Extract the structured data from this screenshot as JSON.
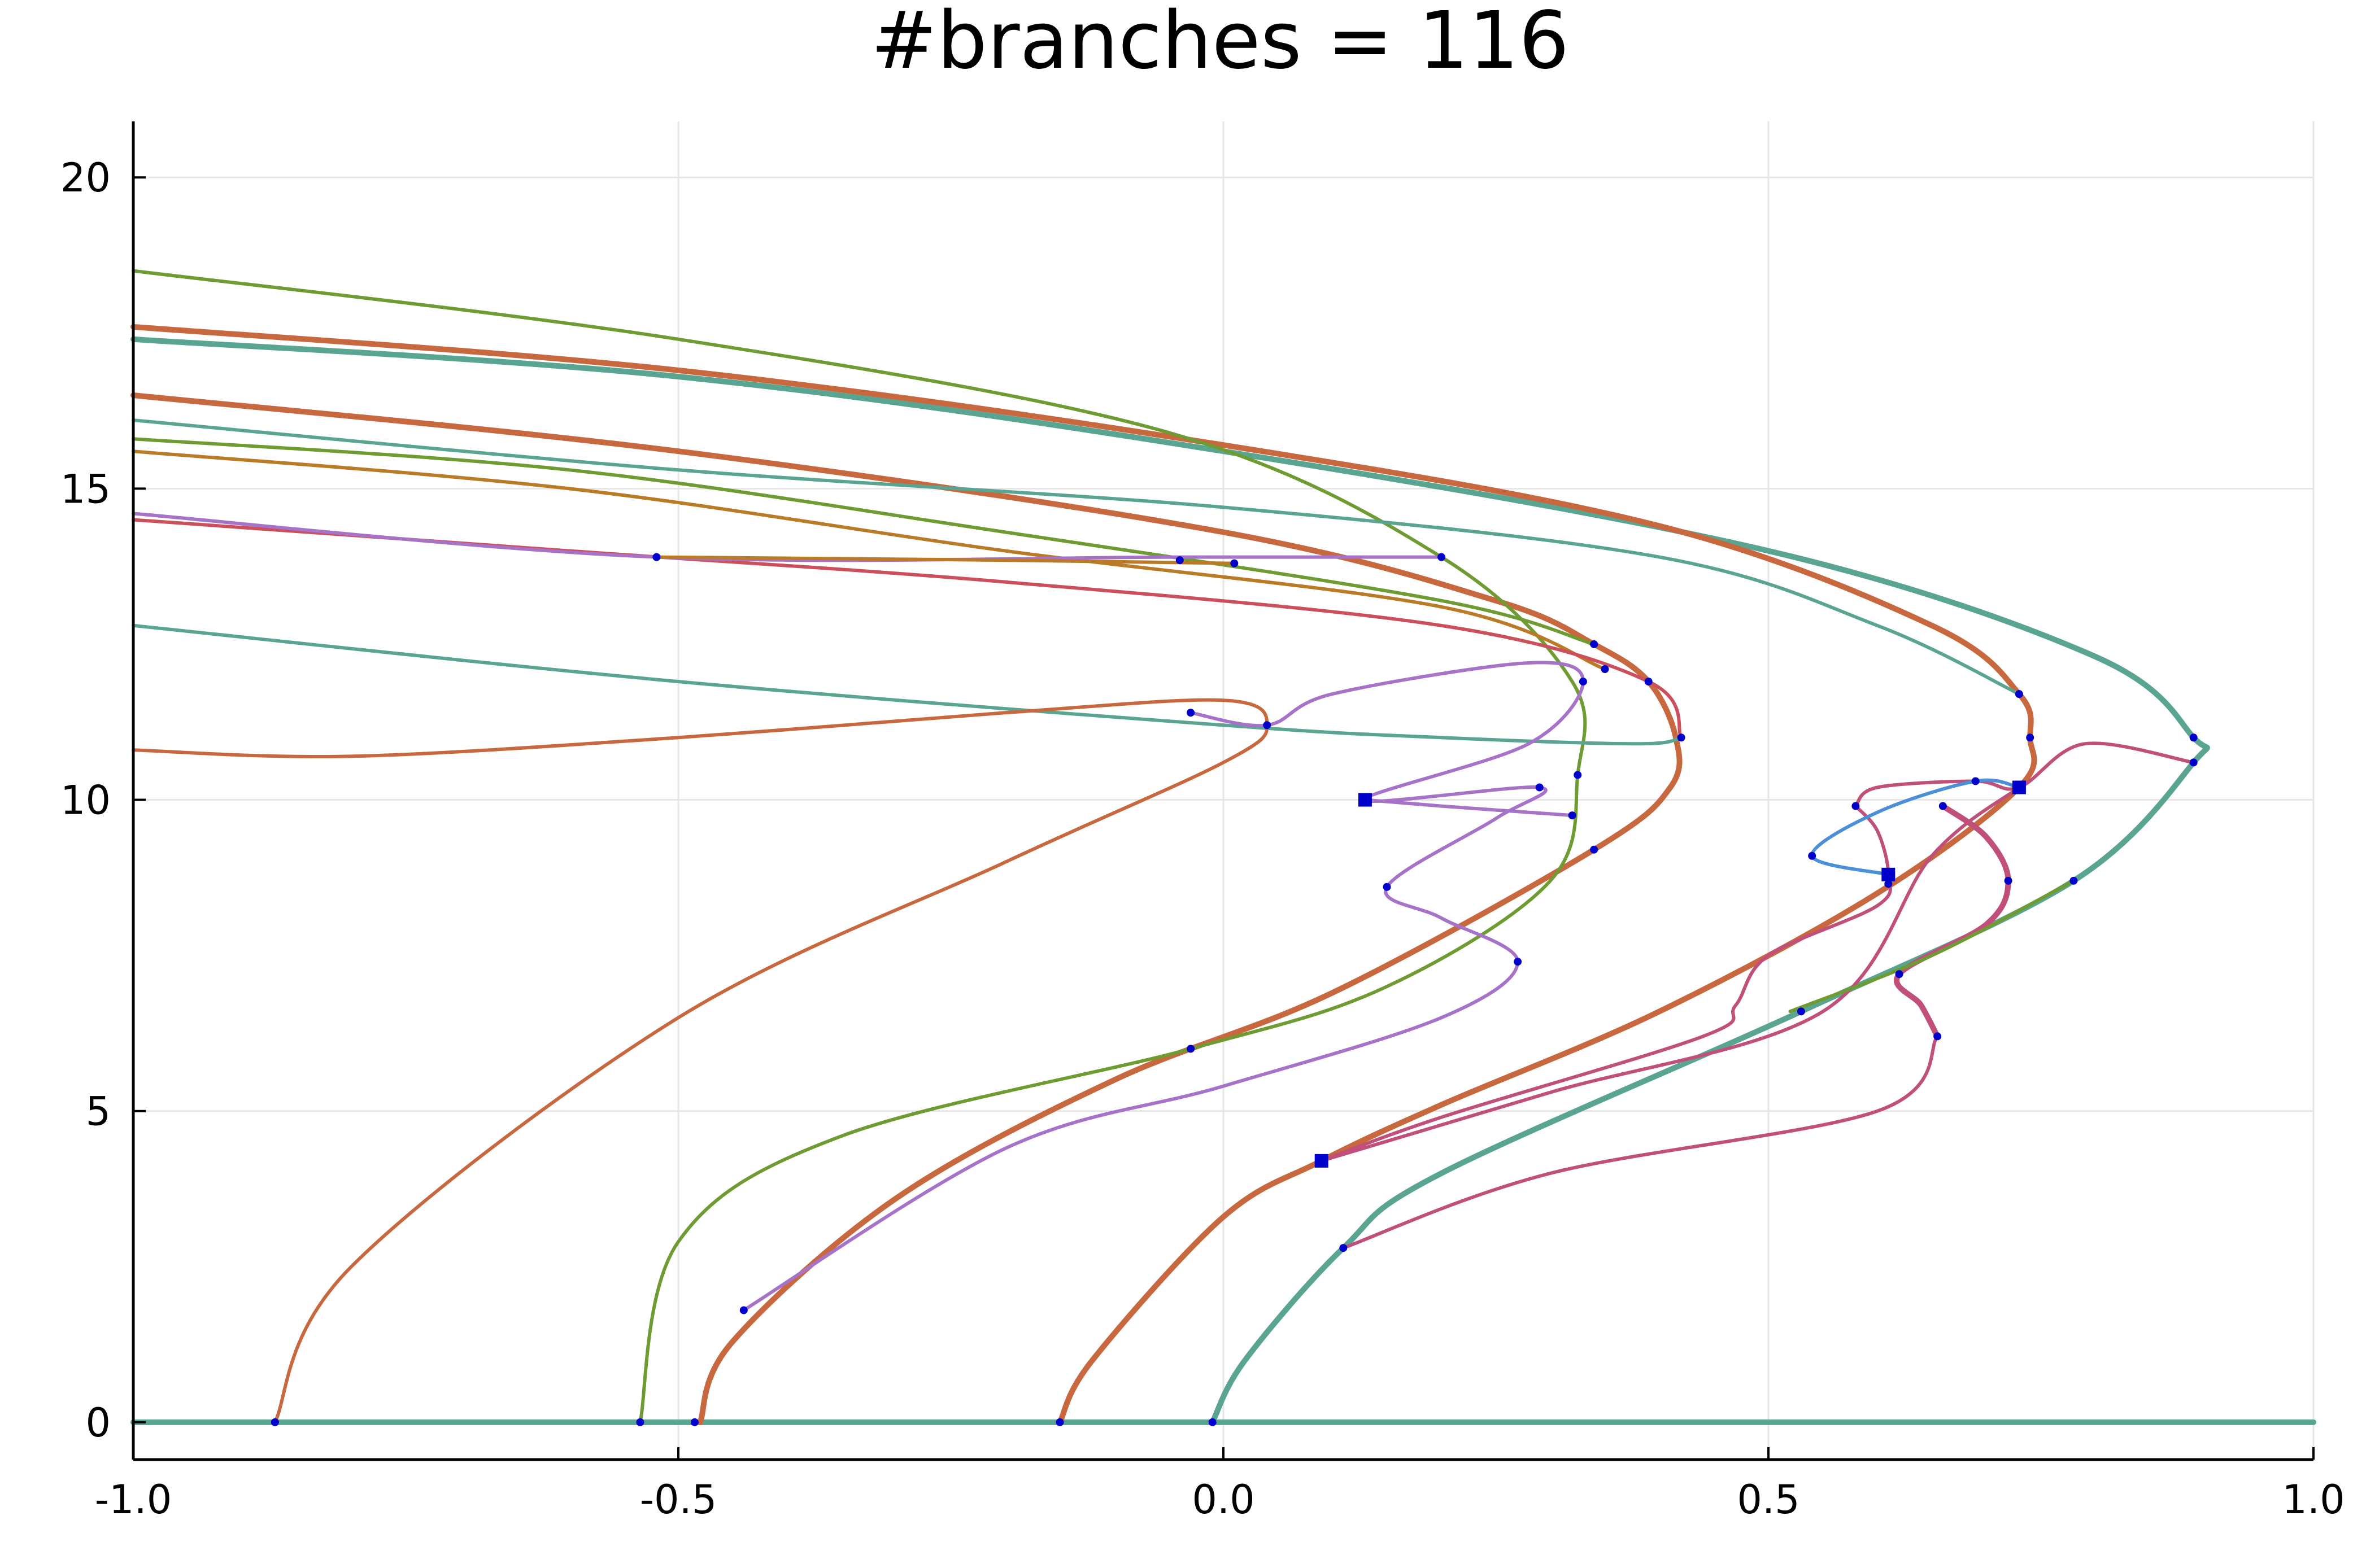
{
  "chart_data": {
    "type": "line",
    "title": "#branches = 116",
    "xlabel": "",
    "ylabel": "",
    "xlim": [
      -1.0,
      1.0
    ],
    "ylim": [
      -0.6,
      20.9
    ],
    "grid": true,
    "legend": "none",
    "x_ticks": [
      -1.0,
      -0.5,
      0.0,
      0.5,
      1.0
    ],
    "x_tick_labels": [
      "-1.0",
      "-0.5",
      "0.0",
      "0.5",
      "1.0"
    ],
    "y_ticks": [
      0,
      5,
      10,
      15,
      20
    ],
    "y_tick_labels": [
      "0",
      "5",
      "10",
      "15",
      "20"
    ],
    "colors": {
      "teal": "#5aa492",
      "orange": "#c8683f",
      "olive": "#6e9b32",
      "purple": "#a673c9",
      "pink": "#c0507a",
      "ochre": "#bb7a26",
      "red": "#cc4f5c",
      "blue": "#4b8fd9",
      "point": "#0000cc",
      "grid": "#e6e6e6",
      "axis": "#000000"
    },
    "series": [
      {
        "color": "teal",
        "width": 10,
        "points": [
          [
            -1.0,
            0.0
          ],
          [
            1.0,
            0.0
          ]
        ]
      },
      {
        "color": "teal",
        "width": 10,
        "points": [
          [
            -1.0,
            17.4
          ],
          [
            -0.5,
            16.8
          ],
          [
            0.0,
            15.6
          ],
          [
            0.5,
            14.0
          ],
          [
            0.8,
            12.3
          ],
          [
            0.89,
            11.0
          ],
          [
            0.89,
            10.6
          ],
          [
            0.78,
            8.7
          ],
          [
            0.53,
            6.6
          ],
          [
            0.2,
            4.0
          ],
          [
            0.11,
            2.8
          ],
          [
            0.02,
            1.0
          ],
          [
            -0.01,
            0.0
          ]
        ]
      },
      {
        "color": "orange",
        "width": 10,
        "points": [
          [
            -1.0,
            17.6
          ],
          [
            -0.5,
            16.9
          ],
          [
            0.0,
            15.7
          ],
          [
            0.4,
            14.4
          ],
          [
            0.65,
            12.8
          ],
          [
            0.73,
            11.7
          ],
          [
            0.74,
            11.0
          ],
          [
            0.73,
            10.2
          ],
          [
            0.6,
            8.5
          ],
          [
            0.4,
            6.6
          ],
          [
            0.2,
            5.1
          ],
          [
            0.09,
            4.2
          ],
          [
            0.0,
            3.3
          ],
          [
            -0.12,
            1.0
          ],
          [
            -0.15,
            0.0
          ]
        ]
      },
      {
        "color": "orange",
        "width": 10,
        "points": [
          [
            -1.0,
            16.5
          ],
          [
            -0.5,
            15.6
          ],
          [
            0.0,
            14.3
          ],
          [
            0.25,
            13.2
          ],
          [
            0.34,
            12.5
          ],
          [
            0.39,
            11.9
          ],
          [
            0.415,
            11.0
          ],
          [
            0.41,
            10.2
          ],
          [
            0.34,
            9.2
          ],
          [
            0.1,
            6.9
          ],
          [
            -0.1,
            5.5
          ],
          [
            -0.3,
            3.6
          ],
          [
            -0.45,
            1.3
          ],
          [
            -0.48,
            0.0
          ]
        ]
      },
      {
        "color": "olive",
        "width": 6,
        "points": [
          [
            -1.0,
            18.5
          ],
          [
            -0.5,
            17.4
          ],
          [
            -0.05,
            15.9
          ],
          [
            0.2,
            13.9
          ],
          [
            0.32,
            11.9
          ],
          [
            0.325,
            10.4
          ],
          [
            0.3,
            8.7
          ],
          [
            0.15,
            7.0
          ],
          [
            -0.03,
            6.0
          ],
          [
            -0.35,
            4.6
          ],
          [
            -0.5,
            2.9
          ],
          [
            -0.535,
            0.0
          ]
        ]
      },
      {
        "color": "olive",
        "width": 6,
        "points": [
          [
            -1.0,
            15.8
          ],
          [
            -0.6,
            15.3
          ],
          [
            -0.2,
            14.3
          ],
          [
            0.2,
            13.2
          ],
          [
            0.34,
            12.5
          ]
        ]
      },
      {
        "color": "ochre",
        "width": 6,
        "points": [
          [
            -1.0,
            15.6
          ],
          [
            -0.6,
            15.0
          ],
          [
            -0.2,
            14.0
          ],
          [
            0.2,
            13.1
          ],
          [
            0.35,
            12.1
          ]
        ]
      },
      {
        "color": "teal",
        "width": 6,
        "points": [
          [
            -1.0,
            16.1
          ],
          [
            -0.5,
            15.3
          ],
          [
            0.0,
            14.7
          ],
          [
            0.4,
            13.9
          ],
          [
            0.6,
            12.8
          ],
          [
            0.73,
            11.7
          ]
        ]
      },
      {
        "color": "red",
        "width": 6,
        "points": [
          [
            -1.0,
            14.5
          ],
          [
            -0.6,
            14.0
          ],
          [
            -0.2,
            13.5
          ],
          [
            0.2,
            12.8
          ],
          [
            0.39,
            11.9
          ],
          [
            0.42,
            11.0
          ]
        ]
      },
      {
        "color": "purple",
        "width": 6,
        "points": [
          [
            -1.0,
            14.6
          ],
          [
            -0.52,
            13.9
          ],
          [
            -0.04,
            13.9
          ],
          [
            0.2,
            13.9
          ]
        ]
      },
      {
        "color": "ochre",
        "width": 6,
        "points": [
          [
            -0.52,
            13.9
          ],
          [
            -0.2,
            13.85
          ],
          [
            0.01,
            13.8
          ]
        ]
      },
      {
        "color": "teal",
        "width": 6,
        "points": [
          [
            -1.0,
            12.8
          ],
          [
            -0.5,
            11.9
          ],
          [
            0.0,
            11.2
          ],
          [
            0.2,
            11.0
          ],
          [
            0.38,
            10.9
          ],
          [
            0.42,
            11.0
          ]
        ]
      },
      {
        "color": "orange",
        "width": 6,
        "points": [
          [
            -1.0,
            10.8
          ],
          [
            -0.8,
            10.7
          ],
          [
            -0.5,
            11.0
          ],
          [
            -0.2,
            11.4
          ],
          [
            0.0,
            11.6
          ],
          [
            0.04,
            11.2
          ],
          [
            0.0,
            10.6
          ],
          [
            -0.2,
            9.0
          ],
          [
            -0.5,
            6.5
          ],
          [
            -0.8,
            2.5
          ],
          [
            -0.87,
            0.0
          ]
        ]
      },
      {
        "color": "purple",
        "width": 6,
        "points": [
          [
            -0.03,
            11.4
          ],
          [
            0.04,
            11.2
          ],
          [
            0.1,
            11.7
          ],
          [
            0.28,
            12.2
          ],
          [
            0.33,
            11.9
          ],
          [
            0.28,
            10.9
          ],
          [
            0.13,
            10.0
          ],
          [
            0.29,
            10.2
          ],
          [
            0.25,
            9.7
          ],
          [
            0.15,
            8.6
          ],
          [
            0.2,
            8.1
          ],
          [
            0.27,
            7.4
          ],
          [
            0.2,
            6.5
          ],
          [
            0.0,
            5.4
          ],
          [
            -0.2,
            4.4
          ],
          [
            -0.44,
            1.8
          ]
        ]
      },
      {
        "color": "purple",
        "width": 6,
        "points": [
          [
            0.13,
            10.0
          ],
          [
            0.2,
            9.9
          ],
          [
            0.32,
            9.75
          ]
        ]
      },
      {
        "color": "pink",
        "width": 10,
        "points": [
          [
            0.66,
            9.9
          ],
          [
            0.7,
            9.4
          ],
          [
            0.72,
            8.7
          ],
          [
            0.7,
            8.0
          ],
          [
            0.62,
            7.2
          ],
          [
            0.64,
            6.7
          ],
          [
            0.655,
            6.2
          ]
        ]
      },
      {
        "color": "pink",
        "width": 6,
        "points": [
          [
            0.58,
            9.9
          ],
          [
            0.6,
            9.5
          ],
          [
            0.61,
            8.8
          ],
          [
            0.6,
            8.3
          ],
          [
            0.5,
            7.5
          ],
          [
            0.47,
            6.7
          ],
          [
            0.44,
            6.2
          ],
          [
            0.2,
            4.9
          ],
          [
            0.09,
            4.2
          ]
        ]
      },
      {
        "color": "pink",
        "width": 6,
        "points": [
          [
            0.73,
            10.2
          ],
          [
            0.65,
            9.1
          ],
          [
            0.55,
            6.6
          ],
          [
            0.3,
            5.3
          ],
          [
            0.09,
            4.2
          ]
        ]
      },
      {
        "color": "pink",
        "width": 6,
        "points": [
          [
            0.655,
            6.2
          ],
          [
            0.6,
            5.0
          ],
          [
            0.3,
            4.0
          ],
          [
            0.11,
            2.8
          ]
        ]
      },
      {
        "color": "pink",
        "width": 6,
        "points": [
          [
            0.58,
            9.9
          ],
          [
            0.6,
            10.2
          ],
          [
            0.69,
            10.3
          ],
          [
            0.73,
            10.2
          ],
          [
            0.79,
            10.9
          ],
          [
            0.89,
            10.6
          ]
        ]
      },
      {
        "color": "blue",
        "width": 6,
        "points": [
          [
            0.61,
            8.8
          ],
          [
            0.54,
            9.1
          ],
          [
            0.6,
            9.8
          ],
          [
            0.69,
            10.3
          ],
          [
            0.73,
            10.2
          ]
        ]
      },
      {
        "color": "olive",
        "width": 6,
        "points": [
          [
            0.52,
            6.6
          ],
          [
            0.65,
            7.5
          ],
          [
            0.78,
            8.7
          ]
        ]
      }
    ],
    "points": [
      [
        -0.87,
        0.0
      ],
      [
        -0.535,
        0.0
      ],
      [
        -0.485,
        0.0
      ],
      [
        -0.15,
        0.0
      ],
      [
        -0.01,
        0.0
      ],
      [
        -0.52,
        13.9
      ],
      [
        -0.04,
        13.85
      ],
      [
        0.01,
        13.8
      ],
      [
        0.2,
        13.9
      ],
      [
        0.34,
        12.5
      ],
      [
        0.35,
        12.1
      ],
      [
        0.39,
        11.9
      ],
      [
        0.33,
        11.9
      ],
      [
        0.42,
        11.0
      ],
      [
        -0.03,
        11.4
      ],
      [
        0.04,
        11.2
      ],
      [
        0.325,
        10.4
      ],
      [
        0.29,
        10.2
      ],
      [
        0.32,
        9.75
      ],
      [
        0.13,
        10.0
      ],
      [
        0.34,
        9.2
      ],
      [
        0.15,
        8.6
      ],
      [
        0.27,
        7.4
      ],
      [
        -0.03,
        6.0
      ],
      [
        -0.44,
        1.8
      ],
      [
        0.73,
        11.7
      ],
      [
        0.74,
        11.0
      ],
      [
        0.89,
        11.0
      ],
      [
        0.89,
        10.6
      ],
      [
        0.69,
        10.3
      ],
      [
        0.73,
        10.2
      ],
      [
        0.58,
        9.9
      ],
      [
        0.66,
        9.9
      ],
      [
        0.54,
        9.1
      ],
      [
        0.61,
        8.8
      ],
      [
        0.61,
        8.65
      ],
      [
        0.72,
        8.7
      ],
      [
        0.78,
        8.7
      ],
      [
        0.62,
        7.2
      ],
      [
        0.655,
        6.2
      ],
      [
        0.53,
        6.6
      ],
      [
        0.09,
        4.2
      ],
      [
        0.11,
        2.8
      ]
    ],
    "square_markers": [
      [
        0.13,
        10.0
      ],
      [
        0.09,
        4.2
      ],
      [
        0.73,
        10.2
      ],
      [
        0.61,
        8.8
      ]
    ]
  }
}
